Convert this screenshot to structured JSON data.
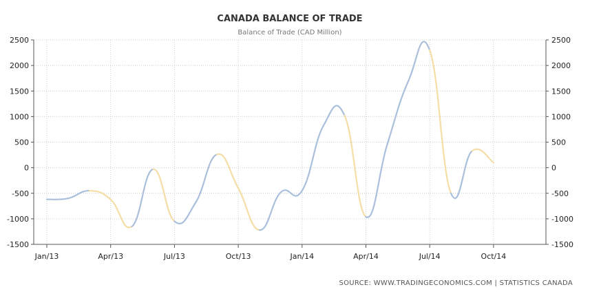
{
  "chart_data": {
    "type": "line",
    "title": "CANADA BALANCE OF TRADE",
    "subtitle": "Balance of Trade (CAD Million)",
    "ylim": [
      -1500,
      2500
    ],
    "y_ticks": [
      2500,
      2000,
      1500,
      1000,
      500,
      0,
      -500,
      -1000,
      -1500
    ],
    "x_ticks": [
      "Jan/13",
      "Apr/13",
      "Jul/13",
      "Oct/13",
      "Jan/14",
      "Apr/14",
      "Jul/14",
      "Oct/14"
    ],
    "grid": true,
    "series": [
      {
        "dates": [
          "Jan/13",
          "Feb/13",
          "Mar/13",
          "Apr/13",
          "May/13",
          "Jun/13",
          "Jul/13",
          "Aug/13",
          "Sep/13",
          "Oct/13",
          "Nov/13",
          "Dec/13",
          "Jan/14",
          "Feb/14",
          "Mar/14",
          "Apr/14",
          "May/14",
          "Jun/14",
          "Jul/14",
          "Aug/14",
          "Sep/14",
          "Oct/14"
        ],
        "values": [
          -620,
          -600,
          -450,
          -620,
          -1150,
          -30,
          -1050,
          -680,
          260,
          -400,
          -1220,
          -480,
          -450,
          820,
          1020,
          -960,
          450,
          1700,
          2300,
          -500,
          330,
          100
        ],
        "color_up": "#a9bfdc",
        "color_down": "#f5dda6"
      }
    ],
    "source": "SOURCE:  WWW.TRADINGECONOMICS.COM  |  STATISTICS  CANADA"
  },
  "colors": {
    "axis": "#555555",
    "grid": "#cccccc",
    "text": "#222222"
  }
}
